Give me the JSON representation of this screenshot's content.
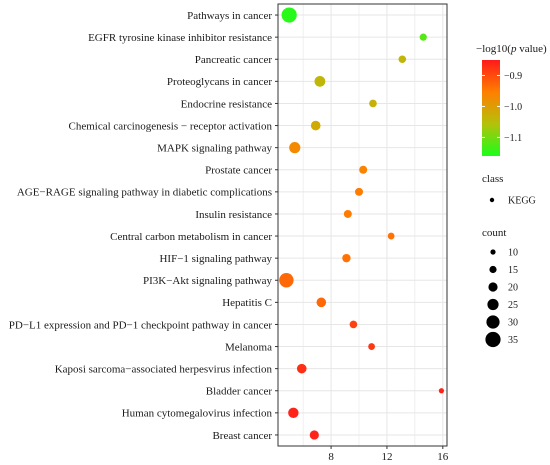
{
  "chart_data": {
    "type": "scatter",
    "title": "",
    "xlabel": "",
    "ylabel": "",
    "xlim": [
      4.2,
      16.3
    ],
    "xticks": [
      8,
      12,
      16
    ],
    "grid": true,
    "legend_position": "right",
    "categories": [
      "Pathways in cancer",
      "EGFR tyrosine kinase inhibitor resistance",
      "Pancreatic cancer",
      "Proteoglycans in cancer",
      "Endocrine resistance",
      "Chemical carcinogenesis − receptor activation",
      "MAPK signaling pathway",
      "Prostate cancer",
      "AGE−RAGE signaling pathway in diabetic complications",
      "Insulin resistance",
      "Central carbon metabolism in cancer",
      "HIF−1 signaling pathway",
      "PI3K−Akt signaling pathway",
      "Hepatitis C",
      "PD−L1 expression and PD−1 checkpoint pathway in cancer",
      "Melanoma",
      "Kaposi sarcoma−associated herpesvirus infection",
      "Bladder cancer",
      "Human cytomegalovirus infection",
      "Breast cancer"
    ],
    "series": [
      {
        "name": "KEGG",
        "points": [
          {
            "pathway": "Pathways in cancer",
            "rich_factor": 5.0,
            "count": 35,
            "neg_log10_p": -1.15
          },
          {
            "pathway": "EGFR tyrosine kinase inhibitor resistance",
            "rich_factor": 14.6,
            "count": 15,
            "neg_log10_p": -1.12
          },
          {
            "pathway": "Pancreatic cancer",
            "rich_factor": 13.1,
            "count": 16,
            "neg_log10_p": -1.04
          },
          {
            "pathway": "Proteoglycans in cancer",
            "rich_factor": 7.2,
            "count": 24,
            "neg_log10_p": -1.04
          },
          {
            "pathway": "Endocrine resistance",
            "rich_factor": 11.0,
            "count": 16,
            "neg_log10_p": -1.03
          },
          {
            "pathway": "Chemical carcinogenesis − receptor activation",
            "rich_factor": 6.9,
            "count": 21,
            "neg_log10_p": -1.02
          },
          {
            "pathway": "MAPK signaling pathway",
            "rich_factor": 5.4,
            "count": 25,
            "neg_log10_p": -0.97
          },
          {
            "pathway": "Prostate cancer",
            "rich_factor": 10.3,
            "count": 17,
            "neg_log10_p": -0.96
          },
          {
            "pathway": "AGE−RAGE signaling pathway in diabetic complications",
            "rich_factor": 10.0,
            "count": 17,
            "neg_log10_p": -0.95
          },
          {
            "pathway": "Insulin resistance",
            "rich_factor": 9.2,
            "count": 17,
            "neg_log10_p": -0.95
          },
          {
            "pathway": "Central carbon metabolism in cancer",
            "rich_factor": 12.3,
            "count": 14,
            "neg_log10_p": -0.94
          },
          {
            "pathway": "HIF−1 signaling pathway",
            "rich_factor": 9.1,
            "count": 18,
            "neg_log10_p": -0.94
          },
          {
            "pathway": "PI3K−Akt signaling pathway",
            "rich_factor": 4.8,
            "count": 33,
            "neg_log10_p": -0.93
          },
          {
            "pathway": "Hepatitis C",
            "rich_factor": 7.3,
            "count": 21,
            "neg_log10_p": -0.93
          },
          {
            "pathway": "PD−L1 expression and PD−1 checkpoint pathway in cancer",
            "rich_factor": 9.6,
            "count": 16,
            "neg_log10_p": -0.89
          },
          {
            "pathway": "Melanoma",
            "rich_factor": 10.9,
            "count": 14,
            "neg_log10_p": -0.88
          },
          {
            "pathway": "Kaposi sarcoma−associated herpesvirus infection",
            "rich_factor": 5.9,
            "count": 21,
            "neg_log10_p": -0.87
          },
          {
            "pathway": "Bladder cancer",
            "rich_factor": 15.9,
            "count": 10,
            "neg_log10_p": -0.86
          },
          {
            "pathway": "Human cytomegalovirus infection",
            "rich_factor": 5.3,
            "count": 23,
            "neg_log10_p": -0.86
          },
          {
            "pathway": "Breast cancer",
            "rich_factor": 6.8,
            "count": 20,
            "neg_log10_p": -0.86
          }
        ]
      }
    ],
    "color_legend": {
      "title_prefix": "−log10(",
      "title_italic": "p",
      "title_suffix": " value)",
      "ticks": [
        -0.9,
        -1.0,
        -1.1
      ],
      "tick_labels": [
        "−0.9",
        "−1.0",
        "−1.1"
      ],
      "range": [
        -1.16,
        -0.85
      ],
      "colors": [
        "#ff1a1a",
        "#ff7f00",
        "#b4c10a",
        "#1aff1a"
      ]
    },
    "class_legend": {
      "title": "class",
      "items": [
        "KEGG"
      ]
    },
    "size_legend": {
      "title": "count",
      "values": [
        10,
        15,
        20,
        25,
        30,
        35
      ]
    }
  }
}
